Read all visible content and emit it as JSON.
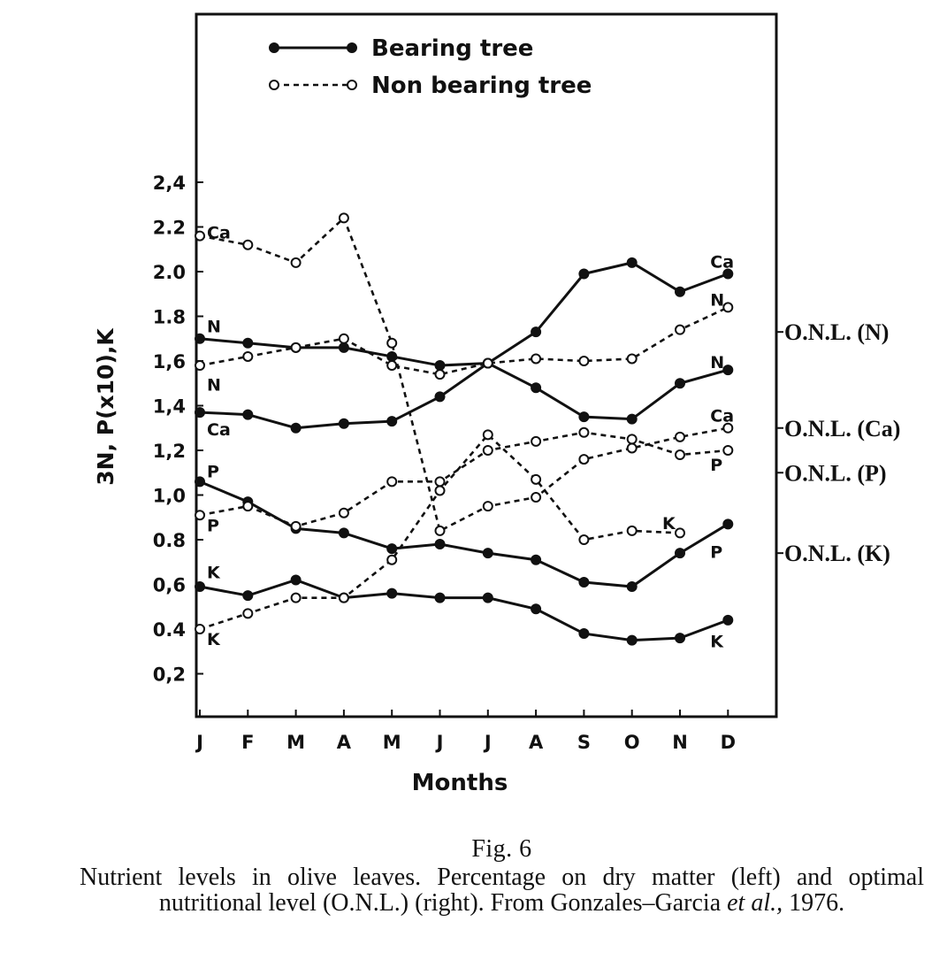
{
  "chart_data": {
    "type": "line",
    "x": [
      "J",
      "F",
      "M",
      "A",
      "M",
      "J",
      "J",
      "A",
      "S",
      "O",
      "N",
      "D"
    ],
    "xlabel": "Months",
    "ylabel": "3N, P(x10),K",
    "ylim": [
      0.0,
      2.6
    ],
    "yticks": [
      {
        "value": 0.2,
        "label": "0,2"
      },
      {
        "value": 0.4,
        "label": "0.4"
      },
      {
        "value": 0.6,
        "label": "0,6"
      },
      {
        "value": 0.8,
        "label": "0.8"
      },
      {
        "value": 1.0,
        "label": "1,0"
      },
      {
        "value": 1.2,
        "label": "1,2"
      },
      {
        "value": 1.4,
        "label": "1,4"
      },
      {
        "value": 1.6,
        "label": "1,6"
      },
      {
        "value": 1.8,
        "label": "1.8"
      },
      {
        "value": 2.0,
        "label": "2.0"
      },
      {
        "value": 2.2,
        "label": "2.2"
      },
      {
        "value": 2.4,
        "label": "2,4"
      }
    ],
    "grid": false,
    "legend": {
      "placement": "top-left",
      "entries": [
        {
          "label": "Bearing tree",
          "style": "solid",
          "marker": "filled"
        },
        {
          "label": "Non bearing tree",
          "style": "dashed",
          "marker": "open"
        }
      ]
    },
    "series": [
      {
        "tree": "bearing",
        "style": "solid",
        "marker": "filled",
        "values": [
          1.7,
          1.68,
          1.66,
          1.66,
          1.62,
          1.58,
          1.59,
          1.48,
          1.35,
          1.34,
          1.5,
          1.56
        ]
      },
      {
        "tree": "bearing",
        "style": "solid",
        "marker": "filled",
        "values": [
          1.37,
          1.36,
          1.3,
          1.32,
          1.33,
          1.44,
          1.59,
          1.73,
          1.99,
          2.04,
          1.91,
          1.99
        ]
      },
      {
        "tree": "bearing",
        "style": "solid",
        "marker": "filled",
        "values": [
          1.06,
          0.97,
          0.85,
          0.83,
          0.76,
          0.78,
          0.74,
          0.71,
          0.61,
          0.59,
          0.74,
          0.87
        ]
      },
      {
        "tree": "bearing",
        "style": "solid",
        "marker": "filled",
        "values": [
          0.59,
          0.55,
          0.62,
          0.54,
          0.56,
          0.54,
          0.54,
          0.49,
          0.38,
          0.35,
          0.36,
          0.44
        ]
      },
      {
        "tree": "non-bearing",
        "style": "dashed",
        "marker": "open",
        "values": [
          1.58,
          1.62,
          1.66,
          1.7,
          1.58,
          1.54,
          1.59,
          1.61,
          1.6,
          1.61,
          1.74,
          1.84
        ]
      },
      {
        "tree": "non-bearing",
        "style": "dashed",
        "marker": "open",
        "values": [
          2.16,
          2.12,
          2.04,
          2.24,
          1.68,
          0.84,
          0.95,
          0.99,
          1.16,
          1.21,
          1.26,
          1.3
        ]
      },
      {
        "tree": "non-bearing",
        "style": "dashed",
        "marker": "open",
        "values": [
          0.91,
          0.95,
          0.86,
          0.92,
          1.06,
          1.06,
          1.2,
          1.24,
          1.28,
          1.25,
          1.18,
          1.2
        ]
      },
      {
        "tree": "non-bearing",
        "style": "dashed",
        "marker": "open",
        "values": [
          0.4,
          0.47,
          0.54,
          0.54,
          0.71,
          1.02,
          1.27,
          1.07,
          0.8,
          0.84,
          0.83,
          null
        ]
      }
    ],
    "annotations": [
      {
        "text": "N",
        "x": 0,
        "y": 1.76
      },
      {
        "text": "N",
        "x": 0,
        "y": 1.5
      },
      {
        "text": "Ca",
        "x": 0,
        "y": 2.18
      },
      {
        "text": "Ca",
        "x": 0,
        "y": 1.3
      },
      {
        "text": "P",
        "x": 0,
        "y": 1.11
      },
      {
        "text": "P",
        "x": 0,
        "y": 0.87
      },
      {
        "text": "K",
        "x": 0,
        "y": 0.66
      },
      {
        "text": "K",
        "x": 0,
        "y": 0.36
      },
      {
        "text": "Ca",
        "x": 11,
        "y": 2.05
      },
      {
        "text": "N",
        "x": 11,
        "y": 1.88
      },
      {
        "text": "N",
        "x": 11,
        "y": 1.6
      },
      {
        "text": "Ca",
        "x": 11,
        "y": 1.36
      },
      {
        "text": "P",
        "x": 11,
        "y": 1.14
      },
      {
        "text": "K",
        "x": 10,
        "y": 0.88
      },
      {
        "text": "P",
        "x": 11,
        "y": 0.75
      },
      {
        "text": "K",
        "x": 11,
        "y": 0.35
      }
    ],
    "right_axis": {
      "labels": [
        {
          "text": "O.N.L. (N)",
          "y": 1.73
        },
        {
          "text": "O.N.L. (Ca)",
          "y": 1.3
        },
        {
          "text": "O.N.L. (P)",
          "y": 1.1
        },
        {
          "text": "O.N.L. (K)",
          "y": 0.74
        }
      ]
    }
  },
  "caption": {
    "fig_label": "Fig. 6",
    "text": "Nutrient levels in olive leaves. Percentage on dry matter (left) and optimal nutritional level (O.N.L.) (right). From Gonzales–Garcia ",
    "text_italic": "et al.,",
    "text_end": " 1976."
  }
}
